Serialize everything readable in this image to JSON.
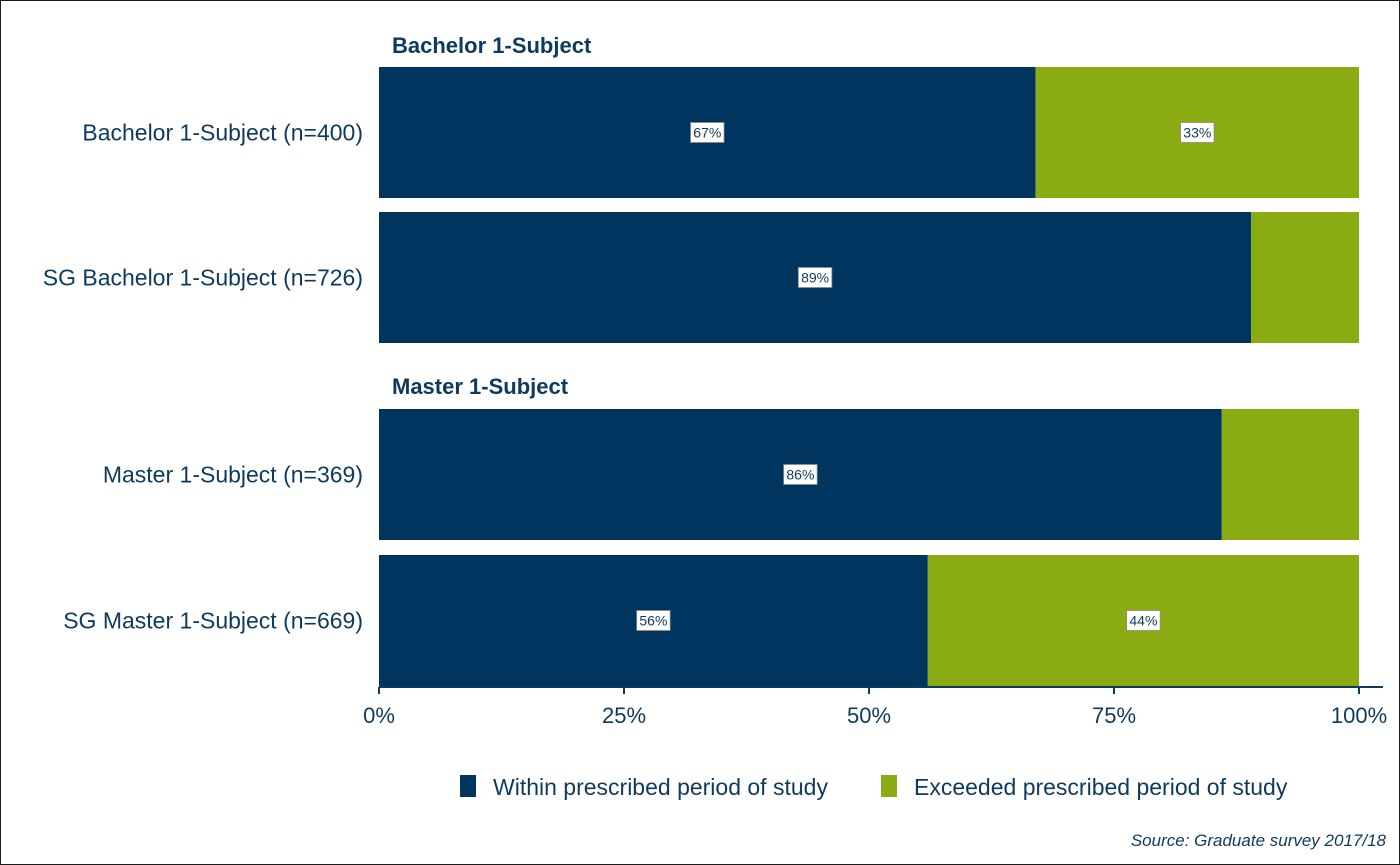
{
  "chart_data": {
    "type": "bar",
    "orientation": "horizontal",
    "stacked": true,
    "percent": true,
    "colors": {
      "within": "#003560",
      "exceeded": "#8aab12"
    },
    "series": [
      {
        "name": "Within prescribed period of study",
        "color": "#003560"
      },
      {
        "name": "Exceeded prescribed period of study",
        "color": "#8aab12"
      }
    ],
    "groups": [
      {
        "title": "Bachelor 1-Subject",
        "rows": [
          {
            "label": "Bachelor 1-Subject (n=400)",
            "values": [
              67,
              33
            ],
            "labels": [
              "67%",
              "33%"
            ]
          },
          {
            "label": "SG Bachelor 1-Subject (n=726)",
            "values": [
              89,
              11
            ],
            "labels": [
              "89%",
              ""
            ]
          }
        ]
      },
      {
        "title": "Master 1-Subject",
        "rows": [
          {
            "label": "Master 1-Subject (n=369)",
            "values": [
              86,
              14
            ],
            "labels": [
              "86%",
              ""
            ]
          },
          {
            "label": "SG Master 1-Subject (n=669)",
            "values": [
              56,
              44
            ],
            "labels": [
              "56%",
              "44%"
            ]
          }
        ]
      }
    ],
    "xlim": [
      0,
      100
    ],
    "xticks": [
      {
        "value": 0,
        "label": "0%"
      },
      {
        "value": 25,
        "label": "25%"
      },
      {
        "value": 50,
        "label": "50%"
      },
      {
        "value": 75,
        "label": "75%"
      },
      {
        "value": 100,
        "label": "100%"
      }
    ],
    "grid": false,
    "legend_position": "bottom",
    "source": "Source: Graduate survey 2017/18"
  }
}
